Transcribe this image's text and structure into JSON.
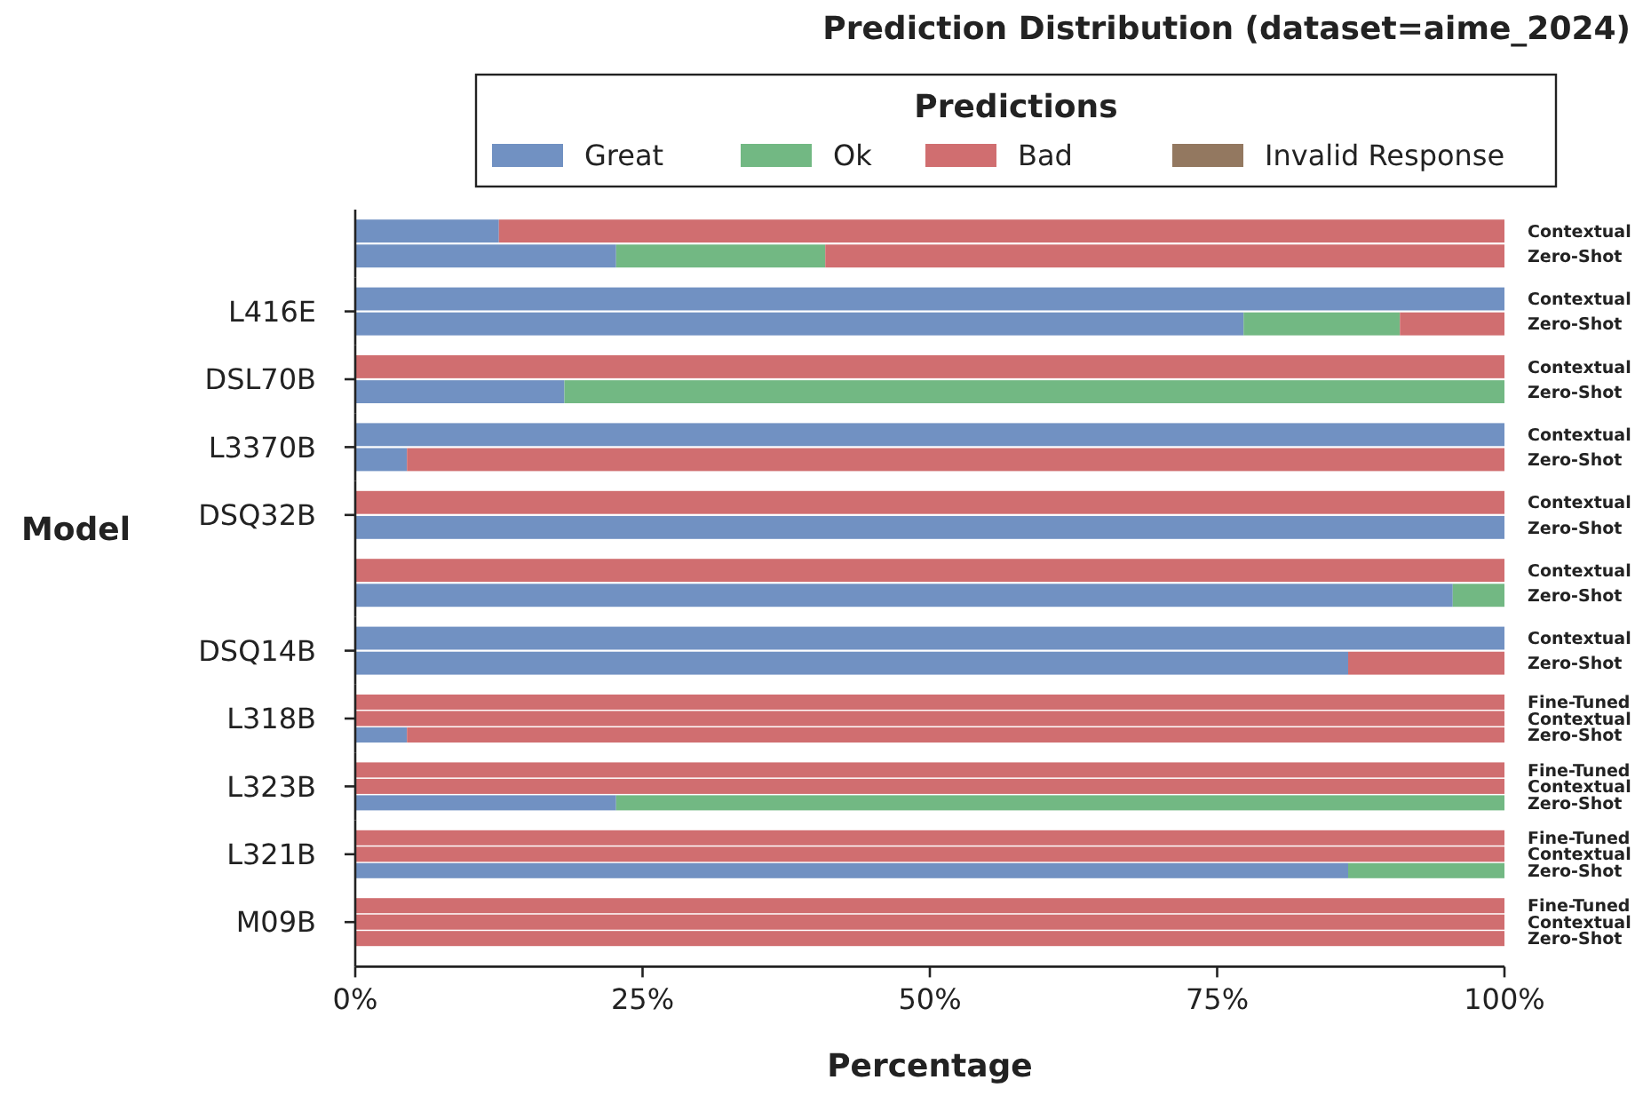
{
  "chart_data": [
    {
      "type": "bar",
      "orientation": "horizontal",
      "stacked": true,
      "title": "Prediction Distribution (dataset=aime_2024)",
      "legend": "top",
      "legend_title": "Predictions",
      "ylabel": null,
      "categories": [
        "Contextual",
        "Zero-Shot"
      ],
      "xlim": [
        0,
        100
      ],
      "tick_labels": "y",
      "series": [
        {
          "name": "Great",
          "color": "#7191c2",
          "values": [
            12.5,
            22.7
          ]
        },
        {
          "name": "Ok",
          "color": "#72b883",
          "values": [
            0,
            18.2
          ]
        },
        {
          "name": "Bad",
          "color": "#d06e70",
          "values": [
            87.5,
            59.1
          ]
        },
        {
          "name": "Invalid Response",
          "color": "#937860",
          "values": [
            0,
            0
          ]
        }
      ]
    },
    {
      "type": "bar",
      "orientation": "horizontal",
      "stacked": true,
      "ylabel": "L416E",
      "categories": [
        "Contextual",
        "Zero-Shot"
      ],
      "xlim": [
        0,
        100
      ],
      "tick_labels": "y",
      "series": [
        {
          "color": "#7191c2",
          "values": [
            100,
            77.3
          ]
        },
        {
          "color": "#72b883",
          "values": [
            0,
            13.6
          ]
        },
        {
          "color": "#d06e70",
          "values": [
            0,
            9.1
          ]
        },
        {
          "color": "#937860",
          "values": [
            0,
            0
          ]
        }
      ]
    },
    {
      "type": "bar",
      "orientation": "horizontal",
      "stacked": true,
      "ylabel": "DSL70B",
      "categories": [
        "Contextual",
        "Zero-Shot"
      ],
      "xlim": [
        0,
        100
      ],
      "tick_labels": "y",
      "series": [
        {
          "color": "#7191c2",
          "values": [
            0,
            18.2
          ]
        },
        {
          "color": "#72b883",
          "values": [
            0,
            81.8
          ]
        },
        {
          "color": "#d06e70",
          "values": [
            100,
            0
          ]
        },
        {
          "color": "#937860",
          "values": [
            0,
            0
          ]
        }
      ]
    },
    {
      "type": "bar",
      "orientation": "horizontal",
      "stacked": true,
      "ylabel": "L3370B",
      "categories": [
        "Contextual",
        "Zero-Shot"
      ],
      "xlim": [
        0,
        100
      ],
      "tick_labels": "y",
      "series": [
        {
          "color": "#7191c2",
          "values": [
            100,
            4.5
          ]
        },
        {
          "color": "#72b883",
          "values": [
            0,
            0
          ]
        },
        {
          "color": "#d06e70",
          "values": [
            0,
            95.5
          ]
        },
        {
          "color": "#937860",
          "values": [
            0,
            0
          ]
        }
      ]
    },
    {
      "type": "bar",
      "orientation": "horizontal",
      "stacked": true,
      "ylabel": "DSQ32B",
      "annotations": [
        "Model"
      ],
      "categories": [
        "Contextual",
        "Zero-Shot"
      ],
      "xlim": [
        0,
        100
      ],
      "tick_labels": "y",
      "series": [
        {
          "color": "#7191c2",
          "values": [
            0,
            100
          ]
        },
        {
          "color": "#72b883",
          "values": [
            0,
            0
          ]
        },
        {
          "color": "#d06e70",
          "values": [
            100,
            0
          ]
        },
        {
          "color": "#937860",
          "values": [
            0,
            0
          ]
        }
      ]
    },
    {
      "type": "bar",
      "orientation": "horizontal",
      "stacked": true,
      "ylabel": null,
      "categories": [
        "Contextual",
        "Zero-Shot"
      ],
      "xlim": [
        0,
        100
      ],
      "tick_labels": "y",
      "series": [
        {
          "color": "#7191c2",
          "values": [
            0,
            95.5
          ]
        },
        {
          "color": "#72b883",
          "values": [
            0,
            4.5
          ]
        },
        {
          "color": "#d06e70",
          "values": [
            100,
            0
          ]
        },
        {
          "color": "#937860",
          "values": [
            0,
            0
          ]
        }
      ]
    },
    {
      "type": "bar",
      "orientation": "horizontal",
      "stacked": true,
      "ylabel": "DSQ14B",
      "categories": [
        "Contextual",
        "Zero-Shot"
      ],
      "xlim": [
        0,
        100
      ],
      "tick_labels": "y",
      "series": [
        {
          "color": "#7191c2",
          "values": [
            100,
            86.4
          ]
        },
        {
          "color": "#72b883",
          "values": [
            0,
            0
          ]
        },
        {
          "color": "#d06e70",
          "values": [
            0,
            13.6
          ]
        },
        {
          "color": "#937860",
          "values": [
            0,
            0
          ]
        }
      ]
    },
    {
      "type": "bar",
      "orientation": "horizontal",
      "stacked": true,
      "ylabel": "L318B",
      "categories": [
        "Fine-Tuned",
        "Contextual",
        "Zero-Shot"
      ],
      "xlim": [
        0,
        100
      ],
      "tick_labels": "y",
      "series": [
        {
          "color": "#7191c2",
          "values": [
            0,
            0,
            4.5
          ]
        },
        {
          "color": "#72b883",
          "values": [
            0,
            0,
            0
          ]
        },
        {
          "color": "#d06e70",
          "values": [
            100,
            100,
            95.5
          ]
        },
        {
          "color": "#937860",
          "values": [
            0,
            0,
            0
          ]
        }
      ]
    },
    {
      "type": "bar",
      "orientation": "horizontal",
      "stacked": true,
      "ylabel": "L323B",
      "categories": [
        "Fine-Tuned",
        "Contextual",
        "Zero-Shot"
      ],
      "xlim": [
        0,
        100
      ],
      "tick_labels": "y",
      "series": [
        {
          "color": "#7191c2",
          "values": [
            0,
            0,
            22.7
          ]
        },
        {
          "color": "#72b883",
          "values": [
            0,
            0,
            77.3
          ]
        },
        {
          "color": "#d06e70",
          "values": [
            100,
            100,
            0
          ]
        },
        {
          "color": "#937860",
          "values": [
            0,
            0,
            0
          ]
        }
      ]
    },
    {
      "type": "bar",
      "orientation": "horizontal",
      "stacked": true,
      "ylabel": "L321B",
      "categories": [
        "Fine-Tuned",
        "Contextual",
        "Zero-Shot"
      ],
      "xlim": [
        0,
        100
      ],
      "tick_labels": "y",
      "series": [
        {
          "color": "#7191c2",
          "values": [
            0,
            0,
            86.4
          ]
        },
        {
          "color": "#72b883",
          "values": [
            0,
            0,
            13.6
          ]
        },
        {
          "color": "#d06e70",
          "values": [
            100,
            100,
            0
          ]
        },
        {
          "color": "#937860",
          "values": [
            0,
            0,
            0
          ]
        }
      ]
    },
    {
      "type": "bar",
      "orientation": "horizontal",
      "stacked": true,
      "ylabel": "M09B",
      "xlabel": "Percentage",
      "categories": [
        "Fine-Tuned",
        "Contextual",
        "Zero-Shot"
      ],
      "xlim": [
        0,
        100
      ],
      "xticks": [
        {
          "value": 0,
          "label": "0%"
        },
        {
          "value": 25,
          "label": "25%"
        },
        {
          "value": 50,
          "label": "50%"
        },
        {
          "value": 75,
          "label": "75%"
        },
        {
          "value": 100,
          "label": "100%"
        }
      ],
      "series": [
        {
          "color": "#7191c2",
          "values": [
            0,
            0,
            0
          ]
        },
        {
          "color": "#72b883",
          "values": [
            0,
            0,
            0
          ]
        },
        {
          "color": "#d06e70",
          "values": [
            100,
            100,
            100
          ]
        },
        {
          "color": "#937860",
          "values": [
            0,
            0,
            0
          ]
        }
      ]
    }
  ]
}
